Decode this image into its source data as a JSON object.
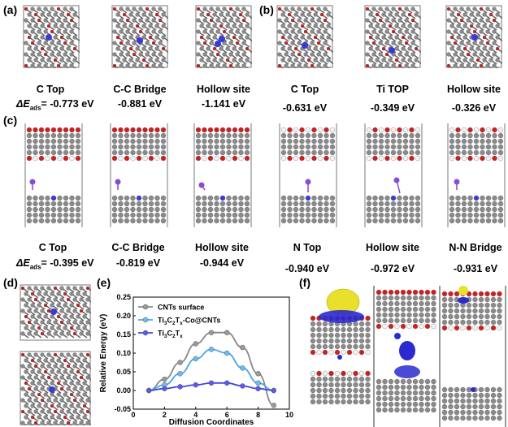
{
  "panel_labels": {
    "a": "(a)",
    "b": "(b)",
    "c": "(c)",
    "d": "(d)",
    "e": "(e)",
    "f": "(f)"
  },
  "row1": {
    "a_sites": [
      "C Top",
      "C-C Bridge",
      "Hollow site"
    ],
    "a_energies": [
      "-0.773 eV",
      "-0.881 eV",
      "-1.141 eV"
    ],
    "b_sites": [
      "C Top",
      "Ti TOP",
      "Hollow site"
    ],
    "b_energies": [
      "-0.631 eV",
      "-0.349 eV",
      "-0.326 eV"
    ],
    "delta_label": "ΔE",
    "delta_sub": "ads",
    "delta_eq": "= "
  },
  "row2": {
    "sites": [
      "C Top",
      "C-C Bridge",
      "Hollow site",
      "N Top",
      "Hollow site",
      "N-N Bridge"
    ],
    "energies": [
      "-0.395 eV",
      "-0.819 eV",
      "-0.944 eV",
      "-0.940 eV",
      "-0.972 eV",
      "-0.931 eV"
    ]
  },
  "colors": {
    "carbon": "#8a8a8a",
    "oxygen": "#cc1f1f",
    "hydrogen": "#f2f2f2",
    "cobalt": "#3a3ad6",
    "ti": "#9a9a9a",
    "iso_yellow": "#e8e02a",
    "iso_blue": "#2a2ad0"
  },
  "chart_data": {
    "type": "line",
    "xlabel": "Diffusion Coordinates",
    "ylabel": "Relative Energy (eV)",
    "xlim": [
      0,
      10
    ],
    "ylim": [
      -0.05,
      0.25
    ],
    "xticks": [
      "0",
      "2",
      "4",
      "6",
      "8",
      "10"
    ],
    "yticks": [
      "-0.05",
      "0.00",
      "0.05",
      "0.10",
      "0.15",
      "0.20",
      "0.25"
    ],
    "legend_location": "top-left",
    "series": [
      {
        "name": "CNTs surface",
        "color": "#888888",
        "fill": "#9a9a9a",
        "x": [
          1,
          2,
          3,
          4,
          5,
          6,
          7,
          8,
          9
        ],
        "y": [
          0.0,
          0.03,
          0.075,
          0.125,
          0.155,
          0.155,
          0.115,
          0.045,
          -0.04
        ]
      },
      {
        "name": "Ti3C2Tx-Co@CNTs",
        "color": "#4aa6e6",
        "fill": "#66c0f0",
        "x": [
          1,
          2,
          3,
          4,
          5,
          6,
          7,
          8,
          9
        ],
        "y": [
          0.0,
          0.015,
          0.045,
          0.085,
          0.11,
          0.1,
          0.06,
          0.02,
          0.0
        ]
      },
      {
        "name": "Ti3C2Tx",
        "color": "#4545d8",
        "fill": "#5a5af0",
        "x": [
          1,
          2,
          3,
          4,
          5,
          6,
          7,
          8,
          9
        ],
        "y": [
          0.0,
          0.005,
          0.01,
          0.015,
          0.02,
          0.02,
          0.012,
          0.005,
          0.0
        ]
      }
    ],
    "legend_parts": [
      [
        "CNTs surface"
      ],
      [
        "Ti",
        "3",
        "C",
        "2",
        "T",
        "x",
        "-Co@CNTs"
      ],
      [
        "Ti",
        "3",
        "C",
        "2",
        "T",
        "x"
      ]
    ]
  }
}
